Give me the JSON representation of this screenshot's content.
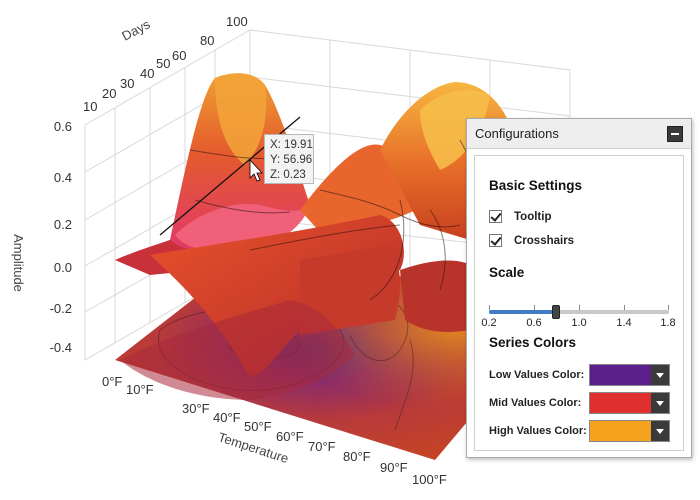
{
  "chart_data": {
    "type": "surface",
    "axes": {
      "y_label": "Amplitude",
      "y_ticks": [
        "0.6",
        "0.4",
        "0.2",
        "0.0",
        "-0.2",
        "-0.4"
      ],
      "days_label": "Days",
      "days_ticks": [
        "10",
        "20",
        "30",
        "40",
        "50",
        "60",
        "80",
        "100"
      ],
      "temp_label": "Temperature",
      "temp_ticks": [
        "0°F",
        "10°F",
        "30°F",
        "40°F",
        "50°F",
        "60°F",
        "70°F",
        "80°F",
        "90°F",
        "100°F"
      ]
    },
    "tooltip_point": {
      "x": 19.91,
      "y": 56.96,
      "z": 0.23
    }
  },
  "tooltip": {
    "x_text": "X: 19.91",
    "y_text": "Y: 56.96",
    "z_text": "Z: 0.23"
  },
  "panel": {
    "title": "Configurations",
    "basic_settings": {
      "title": "Basic Settings",
      "tooltip_label": "Tooltip",
      "tooltip_checked": true,
      "crosshairs_label": "Crosshairs",
      "crosshairs_checked": true
    },
    "scale": {
      "title": "Scale",
      "value": 0.8,
      "min": 0.2,
      "max": 1.8,
      "tick_labels": [
        "0.2",
        "0.6",
        "1.0",
        "1.4",
        "1.8"
      ]
    },
    "series_colors": {
      "title": "Series Colors",
      "low_label": "Low Values Color:",
      "low_color": "#5a1f8a",
      "mid_label": "Mid Values Color:",
      "mid_color": "#e02f2f",
      "high_label": "High Values Color:",
      "high_color": "#f5a21f"
    }
  }
}
